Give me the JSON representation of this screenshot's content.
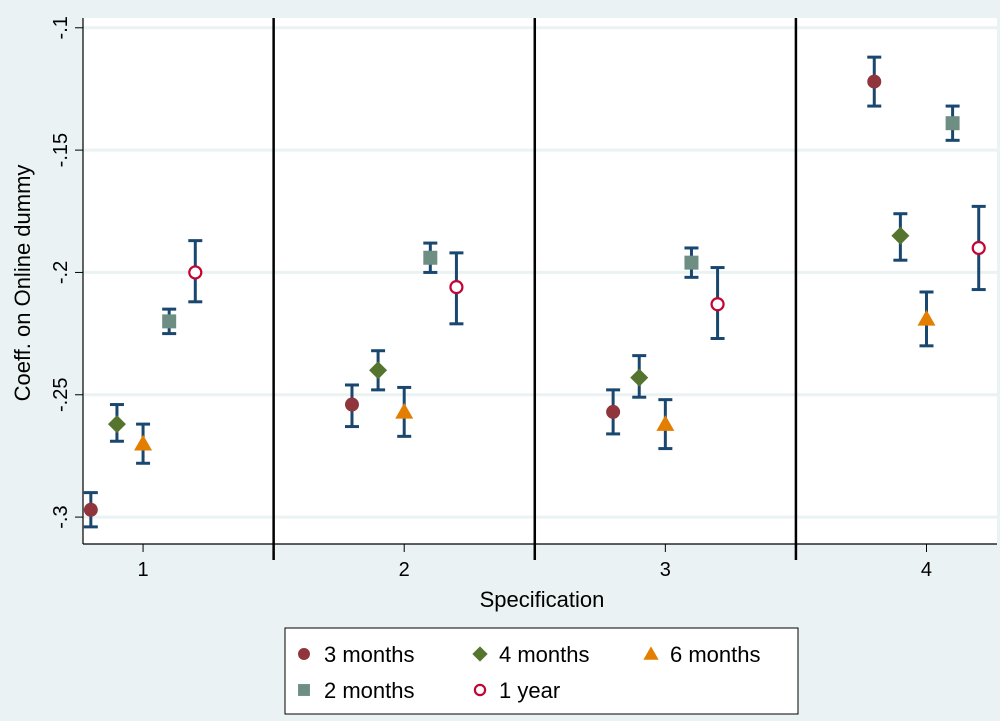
{
  "chart_data": {
    "type": "scatter",
    "xlabel": "Specification",
    "ylabel": "Coeff. on Online dummy",
    "x_ticks": [
      "1",
      "2",
      "3",
      "4"
    ],
    "y_ticks": [
      "-.1",
      "-.15",
      "-.2",
      "-.25",
      "-.3"
    ],
    "y_tick_values": [
      -0.1,
      -0.15,
      -0.2,
      -0.25,
      -0.3
    ],
    "ylim": [
      -0.311,
      -0.096
    ],
    "xlim": [
      0.77,
      4.27
    ],
    "grid": true,
    "legend_position": "bottom",
    "error_bar_color": "#1a476f",
    "series": [
      {
        "name": "3 months",
        "marker": "circle",
        "color": "#90353b",
        "x": [
          0.8,
          1.8,
          2.8,
          3.8
        ],
        "y": [
          -0.297,
          -0.254,
          -0.257,
          -0.122
        ],
        "lower": [
          -0.304,
          -0.263,
          -0.266,
          -0.132
        ],
        "upper": [
          -0.29,
          -0.246,
          -0.248,
          -0.112
        ]
      },
      {
        "name": "4 months",
        "marker": "diamond",
        "color": "#55752f",
        "x": [
          0.9,
          1.9,
          2.9,
          3.9
        ],
        "y": [
          -0.262,
          -0.24,
          -0.243,
          -0.185
        ],
        "lower": [
          -0.269,
          -0.248,
          -0.251,
          -0.195
        ],
        "upper": [
          -0.254,
          -0.232,
          -0.234,
          -0.176
        ]
      },
      {
        "name": "6 months",
        "marker": "triangle",
        "color": "#e37e00",
        "x": [
          1.0,
          2.0,
          3.0,
          4.0
        ],
        "y": [
          -0.27,
          -0.257,
          -0.262,
          -0.219
        ],
        "lower": [
          -0.278,
          -0.267,
          -0.272,
          -0.23
        ],
        "upper": [
          -0.262,
          -0.247,
          -0.252,
          -0.208
        ]
      },
      {
        "name": "2 months",
        "marker": "square",
        "color": "#6e8e84",
        "x": [
          1.1,
          2.1,
          3.1,
          4.1
        ],
        "y": [
          -0.22,
          -0.194,
          -0.196,
          -0.139
        ],
        "lower": [
          -0.225,
          -0.2,
          -0.202,
          -0.146
        ],
        "upper": [
          -0.215,
          -0.188,
          -0.19,
          -0.132
        ]
      },
      {
        "name": "1 year",
        "marker": "hollow-circle",
        "color": "#c10534",
        "x": [
          1.2,
          2.2,
          3.2,
          4.2
        ],
        "y": [
          -0.2,
          -0.206,
          -0.213,
          -0.19
        ],
        "lower": [
          -0.212,
          -0.221,
          -0.227,
          -0.207
        ],
        "upper": [
          -0.187,
          -0.192,
          -0.198,
          -0.173
        ]
      }
    ]
  }
}
